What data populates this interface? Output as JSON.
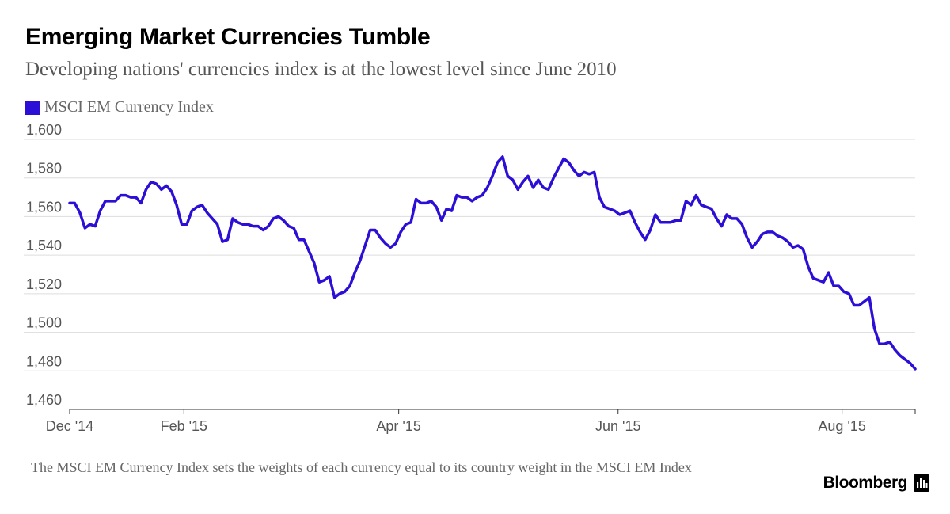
{
  "chart_data": {
    "type": "line",
    "title": "Emerging Market Currencies Tumble",
    "subtitle": "Developing nations' currencies index is at the lowest level since June 2010",
    "series": [
      {
        "name": "MSCI EM Currency Index",
        "color": "#2b0fd6",
        "values": [
          1567,
          1567,
          1562,
          1554,
          1556,
          1555,
          1563,
          1568,
          1568,
          1568,
          1571,
          1571,
          1570,
          1570,
          1567,
          1574,
          1578,
          1577,
          1574,
          1576,
          1573,
          1566,
          1556,
          1556,
          1563,
          1565,
          1566,
          1562,
          1559,
          1556,
          1547,
          1548,
          1559,
          1557,
          1556,
          1556,
          1555,
          1555,
          1553,
          1555,
          1559,
          1560,
          1558,
          1555,
          1554,
          1548,
          1548,
          1542,
          1536,
          1526,
          1527,
          1529,
          1518,
          1520,
          1521,
          1524,
          1531,
          1537,
          1545,
          1553,
          1553,
          1549,
          1546,
          1544,
          1546,
          1552,
          1556,
          1557,
          1569,
          1567,
          1567,
          1568,
          1565,
          1558,
          1564,
          1563,
          1571,
          1570,
          1570,
          1568,
          1570,
          1571,
          1575,
          1581,
          1588,
          1591,
          1581,
          1579,
          1574,
          1578,
          1581,
          1575,
          1579,
          1575,
          1574,
          1580,
          1585,
          1590,
          1588,
          1584,
          1581,
          1583,
          1582,
          1583,
          1570,
          1565,
          1564,
          1563,
          1561,
          1562,
          1563,
          1557,
          1552,
          1548,
          1553,
          1561,
          1557,
          1557,
          1557,
          1558,
          1558,
          1568,
          1566,
          1571,
          1566,
          1565,
          1564,
          1559,
          1555,
          1561,
          1559,
          1559,
          1556,
          1549,
          1544,
          1547,
          1551,
          1552,
          1552,
          1550,
          1549,
          1547,
          1544,
          1545,
          1543,
          1534,
          1528,
          1527,
          1526,
          1531,
          1524,
          1524,
          1521,
          1520,
          1514,
          1514,
          1516,
          1518,
          1502,
          1494,
          1494,
          1495,
          1491,
          1488,
          1486,
          1484,
          1481
        ]
      }
    ],
    "x_ticks": [
      "Dec '14",
      "Feb '15",
      "Apr '15",
      "Jun '15",
      "Aug '15"
    ],
    "x_tick_index": [
      0,
      25,
      72,
      120,
      169
    ],
    "x_range_index": [
      0,
      185
    ],
    "y_ticks": [
      "1,460",
      "1,480",
      "1,500",
      "1,520",
      "1,540",
      "1,560",
      "1,580",
      "1,600"
    ],
    "ylim": [
      1460,
      1600
    ],
    "grid": true,
    "legend_position": "top-left"
  },
  "legend": {
    "label": "MSCI EM Currency Index",
    "color": "#2b0fd6"
  },
  "footnote": "The MSCI EM Currency Index sets the weights of each currency equal to its country weight in the MSCI EM Index",
  "brand": {
    "name": "Bloomberg",
    "icon": "bloomberg-chart-icon"
  }
}
